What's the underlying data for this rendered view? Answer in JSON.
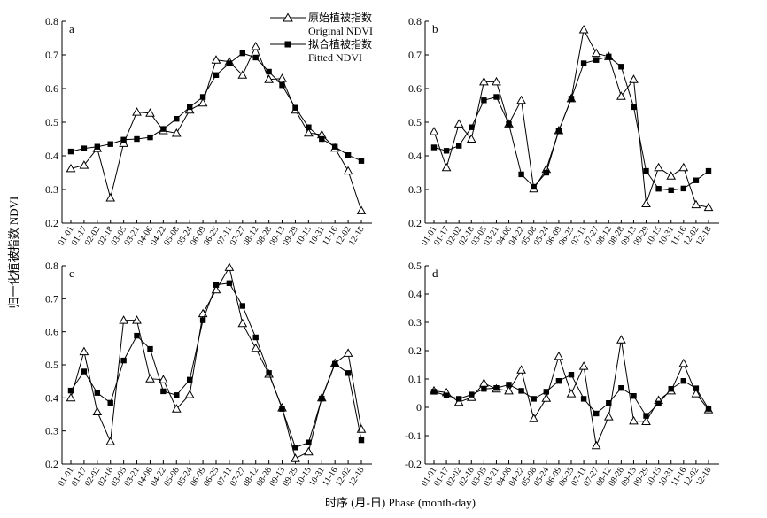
{
  "figure": {
    "ylabel": "归一化植被指数  NDVI",
    "xlabel": "时序 (月-日) Phase (month-day)"
  },
  "legend": {
    "original": [
      "原始植被指数",
      "Original NDVI"
    ],
    "fitted": [
      "拟合植被指数",
      "Fitted NDVI"
    ]
  },
  "chart_data": [
    {
      "type": "line",
      "label": "a",
      "categories": [
        "01-01",
        "01-17",
        "02-02",
        "02-18",
        "03-05",
        "03-21",
        "04-06",
        "04-22",
        "05-08",
        "05-24",
        "06-09",
        "06-25",
        "07-11",
        "07-27",
        "08-12",
        "08-28",
        "09-13",
        "09-29",
        "10-15",
        "10-31",
        "11-16",
        "12-02",
        "12-18"
      ],
      "ylim": [
        0.2,
        0.8
      ],
      "yticks": [
        0.2,
        0.3,
        0.4,
        0.5,
        0.6,
        0.7,
        0.8
      ],
      "series": [
        {
          "name": "Original NDVI",
          "marker": "triangle",
          "values": [
            0.362,
            0.372,
            0.422,
            0.275,
            0.437,
            0.53,
            0.527,
            0.475,
            0.467,
            0.536,
            0.557,
            0.685,
            0.68,
            0.64,
            0.725,
            0.627,
            0.63,
            0.536,
            0.468,
            0.463,
            0.423,
            0.355,
            0.237
          ]
        },
        {
          "name": "Fitted NDVI",
          "marker": "square",
          "values": [
            0.413,
            0.422,
            0.427,
            0.435,
            0.448,
            0.45,
            0.455,
            0.48,
            0.51,
            0.545,
            0.575,
            0.64,
            0.675,
            0.705,
            0.692,
            0.65,
            0.61,
            0.543,
            0.485,
            0.45,
            0.427,
            0.402,
            0.385
          ]
        }
      ]
    },
    {
      "type": "line",
      "label": "b",
      "categories": [
        "01-01",
        "01-17",
        "02-02",
        "02-18",
        "03-05",
        "03-21",
        "04-06",
        "04-22",
        "05-08",
        "05-24",
        "06-09",
        "06-25",
        "07-11",
        "07-27",
        "08-12",
        "08-28",
        "09-13",
        "09-29",
        "10-15",
        "10-31",
        "11-16",
        "12-02",
        "12-18"
      ],
      "ylim": [
        0.2,
        0.8
      ],
      "yticks": [
        0.2,
        0.3,
        0.4,
        0.5,
        0.6,
        0.7,
        0.8
      ],
      "series": [
        {
          "name": "Original NDVI",
          "marker": "triangle",
          "values": [
            0.472,
            0.365,
            0.495,
            0.45,
            0.62,
            0.62,
            0.495,
            0.565,
            0.302,
            0.36,
            0.475,
            0.57,
            0.775,
            0.705,
            0.695,
            0.577,
            0.627,
            0.258,
            0.365,
            0.34,
            0.365,
            0.255,
            0.247
          ]
        },
        {
          "name": "Fitted NDVI",
          "marker": "square",
          "values": [
            0.425,
            0.415,
            0.43,
            0.485,
            0.565,
            0.575,
            0.495,
            0.345,
            0.308,
            0.35,
            0.475,
            0.57,
            0.675,
            0.685,
            0.695,
            0.665,
            0.545,
            0.355,
            0.302,
            0.298,
            0.303,
            0.327,
            0.355
          ]
        }
      ]
    },
    {
      "type": "line",
      "label": "c",
      "categories": [
        "01-01",
        "01-17",
        "02-02",
        "02-18",
        "03-05",
        "03-21",
        "04-06",
        "04-22",
        "05-08",
        "05-24",
        "06-09",
        "06-25",
        "07-11",
        "07-27",
        "08-12",
        "08-28",
        "09-13",
        "09-29",
        "10-15",
        "10-31",
        "11-16",
        "12-02",
        "12-18"
      ],
      "ylim": [
        0.2,
        0.8
      ],
      "yticks": [
        0.2,
        0.3,
        0.4,
        0.5,
        0.6,
        0.7,
        0.8
      ],
      "series": [
        {
          "name": "Original NDVI",
          "marker": "triangle",
          "values": [
            0.4,
            0.54,
            0.358,
            0.268,
            0.635,
            0.635,
            0.458,
            0.455,
            0.367,
            0.41,
            0.655,
            0.727,
            0.795,
            0.625,
            0.55,
            0.472,
            0.37,
            0.217,
            0.237,
            0.4,
            0.505,
            0.535,
            0.305
          ]
        },
        {
          "name": "Fitted NDVI",
          "marker": "square",
          "values": [
            0.422,
            0.48,
            0.415,
            0.385,
            0.513,
            0.588,
            0.548,
            0.42,
            0.408,
            0.455,
            0.635,
            0.742,
            0.747,
            0.678,
            0.583,
            0.475,
            0.367,
            0.25,
            0.265,
            0.398,
            0.503,
            0.475,
            0.272
          ]
        }
      ]
    },
    {
      "type": "line",
      "label": "d",
      "categories": [
        "01-01",
        "01-17",
        "02-02",
        "02-18",
        "03-05",
        "03-21",
        "04-06",
        "04-22",
        "05-08",
        "05-24",
        "06-09",
        "06-25",
        "07-11",
        "07-27",
        "08-12",
        "08-28",
        "09-13",
        "09-29",
        "10-15",
        "10-31",
        "11-16",
        "12-02",
        "12-18"
      ],
      "ylim": [
        -0.2,
        0.5
      ],
      "yticks": [
        -0.2,
        -0.1,
        0,
        0.1,
        0.2,
        0.3,
        0.4,
        0.5
      ],
      "series": [
        {
          "name": "Original NDVI",
          "marker": "triangle",
          "values": [
            0.058,
            0.052,
            0.018,
            0.035,
            0.085,
            0.065,
            0.058,
            0.132,
            -0.04,
            0.032,
            0.18,
            0.048,
            0.145,
            -0.135,
            -0.033,
            0.238,
            -0.048,
            -0.05,
            0.025,
            0.058,
            0.155,
            0.048,
            -0.008
          ]
        },
        {
          "name": "Fitted NDVI",
          "marker": "square",
          "values": [
            0.055,
            0.042,
            0.03,
            0.045,
            0.065,
            0.068,
            0.08,
            0.058,
            0.03,
            0.055,
            0.093,
            0.115,
            0.03,
            -0.022,
            0.015,
            0.068,
            0.04,
            -0.03,
            0.013,
            0.065,
            0.093,
            0.067,
            -0.005
          ]
        }
      ]
    }
  ]
}
